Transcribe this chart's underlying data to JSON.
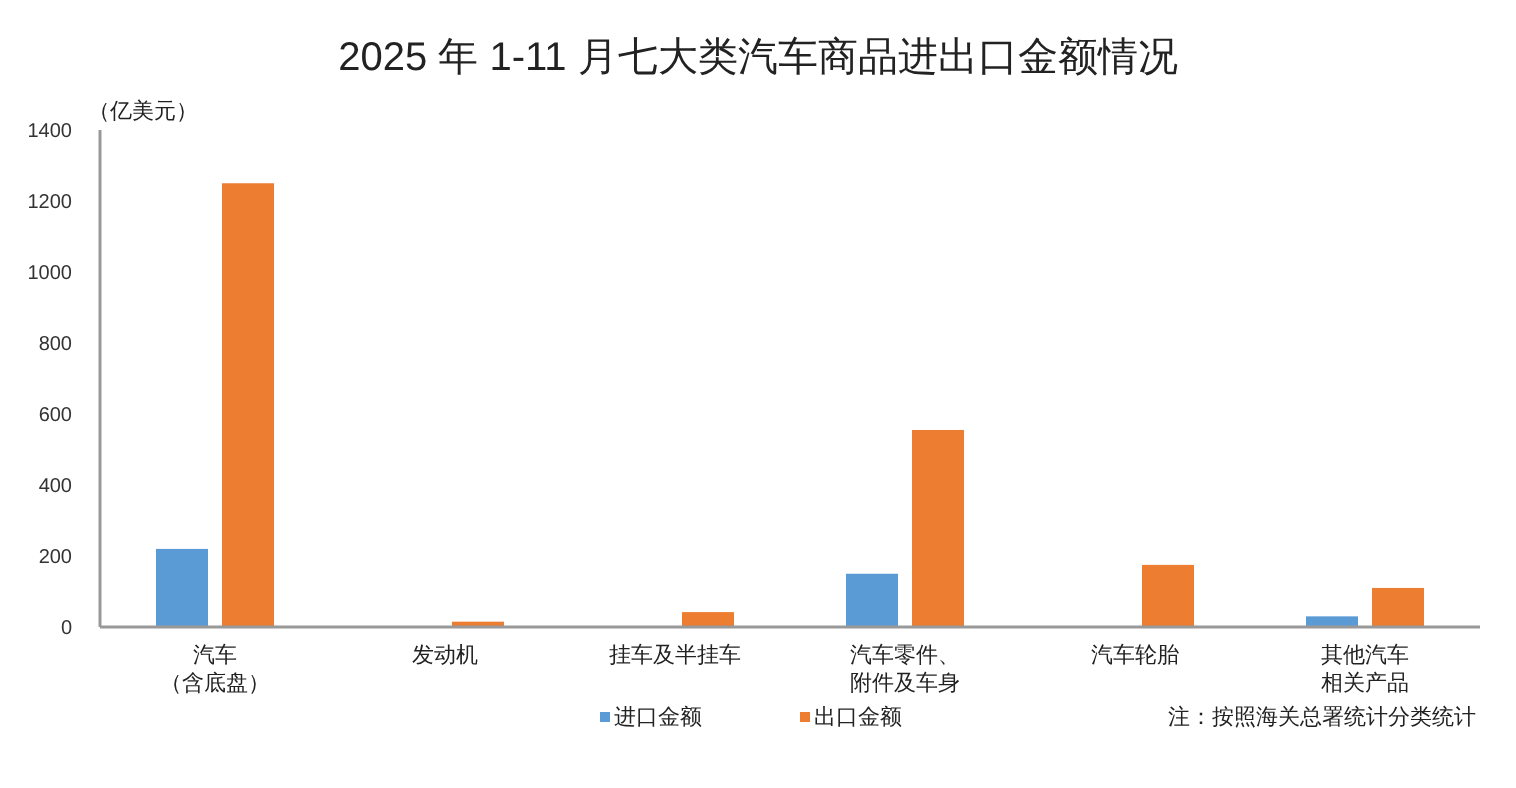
{
  "chart_data": {
    "type": "bar",
    "title": "2025 年 1-11 月七大类汽车商品进出口金额情况",
    "ylabel": "（亿美元）",
    "categories": [
      "汽车（含底盘）",
      "发动机",
      "挂车及半挂车",
      "汽车零件、附件及车身",
      "汽车轮胎",
      "其他汽车相关产品"
    ],
    "series": [
      {
        "name": "进口金额",
        "color": "#5b9bd5",
        "values": [
          220,
          0,
          0,
          150,
          0,
          30
        ]
      },
      {
        "name": "出口金额",
        "color": "#ed7d31",
        "values": [
          1250,
          15,
          42,
          555,
          175,
          110
        ]
      }
    ],
    "ylim": [
      0,
      1400
    ],
    "yticks": [
      0,
      200,
      400,
      600,
      800,
      1000,
      1200,
      1400
    ],
    "grid": false,
    "legend": "bottom left",
    "annotations": [
      "注：按照海关总署统计分类统计"
    ]
  }
}
